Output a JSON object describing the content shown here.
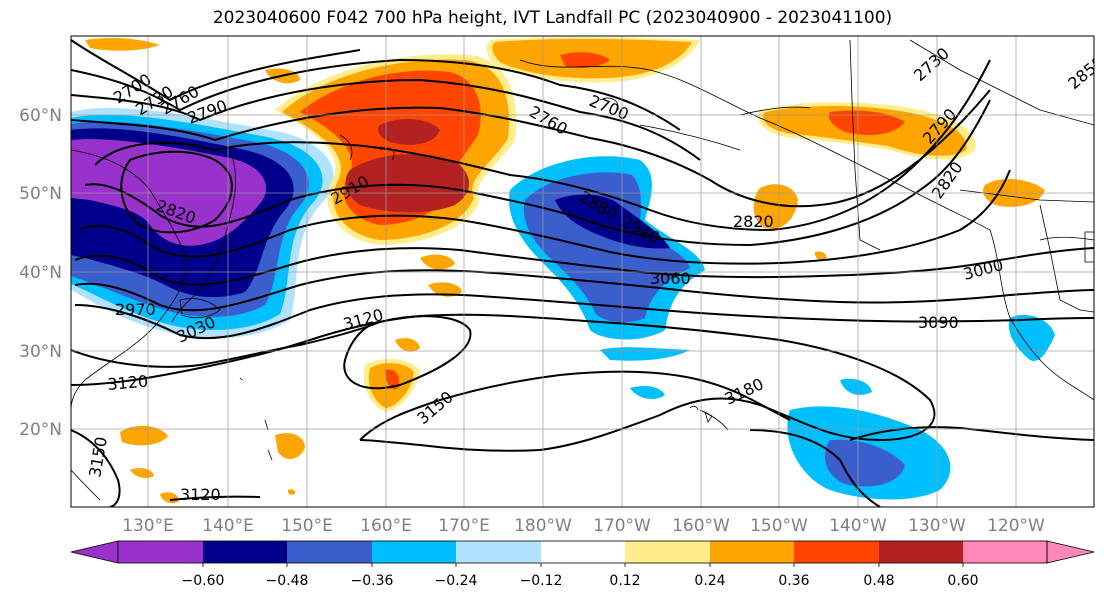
{
  "map": {
    "title": "2023040600 F042 700 hPa height, IVT Landfall PC (2023040900 - 2023041100)",
    "lat_labels": [
      "60°N",
      "50°N",
      "40°N",
      "30°N",
      "20°N"
    ],
    "lon_labels": [
      "130°E",
      "140°E",
      "150°E",
      "160°E",
      "170°E",
      "180°W",
      "170°W",
      "160°W",
      "150°W",
      "140°W",
      "130°W",
      "120°W"
    ],
    "contour_labels": [
      "2700",
      "2730",
      "2760",
      "2790",
      "2700",
      "2760",
      "2730",
      "2790",
      "2820",
      "2910",
      "2820",
      "2880",
      "2940",
      "2820",
      "2850",
      "3060",
      "3000",
      "2970",
      "3030",
      "3120",
      "3090",
      "3120",
      "3180",
      "3150",
      "3150",
      "3120"
    ],
    "colors": {
      "purple": "#9932CC",
      "navy": "#00008B",
      "royal": "#3A5FCD",
      "sky": "#00BFFF",
      "pale_blue": "#B0E2FF",
      "yellow": "#FFEC8B",
      "orange": "#FFA500",
      "red_orange": "#FF4500",
      "firebrick": "#B22222",
      "pink": "#FF88B8"
    }
  },
  "colorbar": {
    "ticks": [
      "−0.60",
      "−0.48",
      "−0.36",
      "−0.24",
      "−0.12",
      "0.12",
      "0.24",
      "0.36",
      "0.48",
      "0.60"
    ]
  }
}
